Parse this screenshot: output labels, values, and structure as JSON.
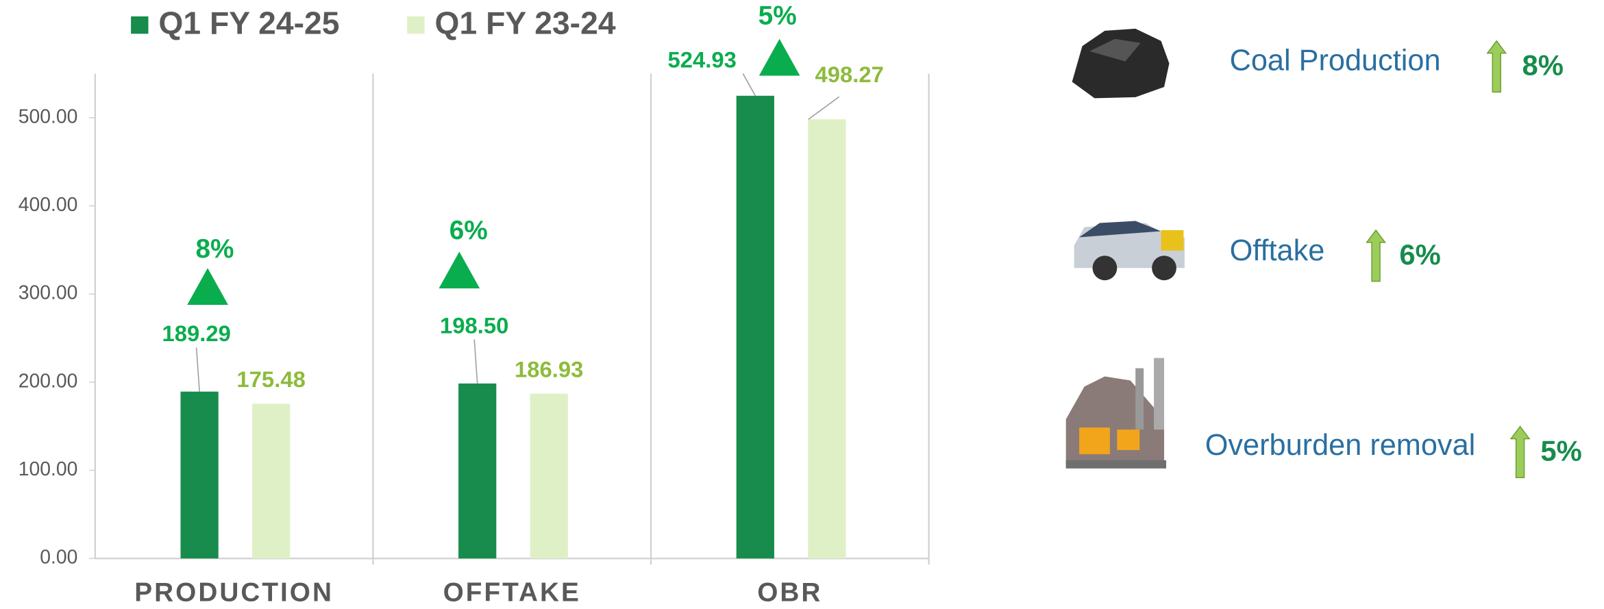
{
  "chart_data": {
    "type": "bar",
    "categories": [
      "PRODUCTION",
      "OFFTAKE",
      "OBR"
    ],
    "series": [
      {
        "name": "Q1 FY 24-25",
        "color": "#178c4c",
        "values": [
          189.29,
          198.5,
          524.93
        ],
        "value_labels": [
          "189.29",
          "198.50",
          "524.93"
        ]
      },
      {
        "name": "Q1 FY 23-24",
        "color": "#dff0c6",
        "label_color": "#8dbb3c",
        "values": [
          175.48,
          186.93,
          498.27
        ]
      }
    ],
    "growth": [
      "8%",
      "6%",
      "5%"
    ],
    "growth_color": "#0aad4e",
    "ylim": [
      0,
      550
    ],
    "yticks": [
      {
        "value": 0,
        "label": "0.00"
      },
      {
        "value": 100,
        "label": "100.00"
      },
      {
        "value": 200,
        "label": "200.00"
      },
      {
        "value": 300,
        "label": "300.00"
      },
      {
        "value": 400,
        "label": "400.00"
      },
      {
        "value": 500,
        "label": "500.00"
      }
    ],
    "legend": "top"
  },
  "summary": [
    {
      "label": "Coal Production",
      "change": "8%"
    },
    {
      "label": "Offtake",
      "change": "6%"
    },
    {
      "label": "Overburden removal",
      "change": "5%"
    }
  ]
}
